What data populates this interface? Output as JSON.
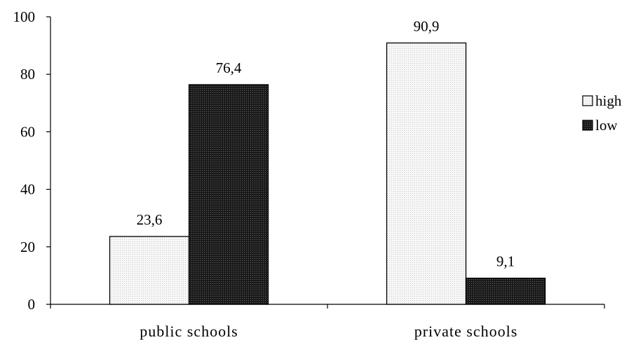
{
  "chart_data": {
    "type": "bar",
    "categories": [
      "public schools",
      "private schools"
    ],
    "series": [
      {
        "name": "high",
        "values": [
          23.6,
          90.9
        ],
        "labels": [
          "23,6",
          "90,9"
        ],
        "color": "#f4f4f4"
      },
      {
        "name": "low",
        "values": [
          76.4,
          9.1
        ],
        "labels": [
          "76,4",
          "9,1"
        ],
        "color": "#1e1e1e"
      }
    ],
    "yticks": [
      0,
      20,
      40,
      60,
      80,
      100
    ],
    "ylim": [
      0,
      100
    ],
    "title": "",
    "xlabel": "",
    "ylabel": "",
    "grid": false,
    "legend": "right"
  }
}
